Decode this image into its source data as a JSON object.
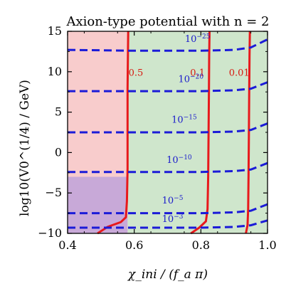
{
  "chart_data": {
    "type": "contour",
    "title": "Axion-type potential with n = 2",
    "xlabel": "χ_ini / (f_a π)",
    "ylabel": "log10(V0^(1/4) / GeV)",
    "xlim": [
      0.4,
      1.0
    ],
    "ylim": [
      -10,
      15
    ],
    "x_ticks": [
      "0.4",
      "0.6",
      "0.8",
      "1.0"
    ],
    "y_ticks": [
      "−10",
      "−5",
      "0",
      "5",
      "10",
      "15"
    ],
    "x_tick_values": [
      0.4,
      0.6,
      0.8,
      1.0
    ],
    "y_tick_values": [
      -10,
      -5,
      0,
      5,
      10,
      15
    ],
    "regions": [
      {
        "name": "red-region",
        "color": "#f8cccc",
        "x_range": [
          0.4,
          0.58
        ],
        "y_range": [
          -10,
          15
        ]
      },
      {
        "name": "green-region",
        "color": "#cfe6cc",
        "x_range": [
          0.58,
          1.0
        ],
        "y_range": [
          -10,
          15
        ]
      },
      {
        "name": "purple-region",
        "color": "#c8a9d8",
        "x_range": [
          0.4,
          0.58
        ],
        "y_range": [
          -10,
          -3
        ]
      }
    ],
    "red_contours": [
      {
        "label": "0.5",
        "label_x": 0.605,
        "label_y": 9.5,
        "points": [
          [
            0.49,
            -10
          ],
          [
            0.52,
            -9.2
          ],
          [
            0.56,
            -8.6
          ],
          [
            0.575,
            -8
          ],
          [
            0.578,
            -6
          ],
          [
            0.58,
            -2
          ],
          [
            0.58,
            3
          ],
          [
            0.58,
            8
          ],
          [
            0.581,
            12
          ],
          [
            0.582,
            15
          ]
        ]
      },
      {
        "label": "0.1",
        "label_x": 0.79,
        "label_y": 9.5,
        "points": [
          [
            0.77,
            -10
          ],
          [
            0.795,
            -9.3
          ],
          [
            0.815,
            -8.5
          ],
          [
            0.82,
            -7
          ],
          [
            0.822,
            -3
          ],
          [
            0.823,
            2
          ],
          [
            0.824,
            7
          ],
          [
            0.825,
            12
          ],
          [
            0.826,
            15
          ]
        ]
      },
      {
        "label": "0.01",
        "label_x": 0.915,
        "label_y": 9.5,
        "points": [
          [
            0.935,
            -10
          ],
          [
            0.94,
            -9
          ],
          [
            0.942,
            -7
          ],
          [
            0.943,
            -3
          ],
          [
            0.944,
            2
          ],
          [
            0.945,
            7
          ],
          [
            0.946,
            12
          ],
          [
            0.947,
            15
          ]
        ]
      }
    ],
    "blue_contours": [
      {
        "label": "10",
        "exponent": "−25",
        "label_x": 0.79,
        "label_y": 13.7,
        "points": [
          [
            0.4,
            12.7
          ],
          [
            0.6,
            12.6
          ],
          [
            0.8,
            12.6
          ],
          [
            0.9,
            12.7
          ],
          [
            0.95,
            13.0
          ],
          [
            1.0,
            14.0
          ]
        ]
      },
      {
        "label": "10",
        "exponent": "−20",
        "label_x": 0.77,
        "label_y": 8.7,
        "points": [
          [
            0.4,
            7.6
          ],
          [
            0.6,
            7.6
          ],
          [
            0.8,
            7.6
          ],
          [
            0.9,
            7.7
          ],
          [
            0.95,
            7.9
          ],
          [
            1.0,
            8.7
          ]
        ]
      },
      {
        "label": "10",
        "exponent": "−15",
        "label_x": 0.75,
        "label_y": 3.7,
        "points": [
          [
            0.4,
            2.5
          ],
          [
            0.6,
            2.5
          ],
          [
            0.8,
            2.5
          ],
          [
            0.9,
            2.6
          ],
          [
            0.95,
            2.8
          ],
          [
            1.0,
            3.6
          ]
        ]
      },
      {
        "label": "10",
        "exponent": "−10",
        "label_x": 0.735,
        "label_y": -1.3,
        "points": [
          [
            0.4,
            -2.4
          ],
          [
            0.6,
            -2.4
          ],
          [
            0.8,
            -2.4
          ],
          [
            0.9,
            -2.3
          ],
          [
            0.95,
            -2.1
          ],
          [
            1.0,
            -1.3
          ]
        ]
      },
      {
        "label": "10",
        "exponent": "−5",
        "label_x": 0.715,
        "label_y": -6.3,
        "points": [
          [
            0.4,
            -7.5
          ],
          [
            0.6,
            -7.5
          ],
          [
            0.8,
            -7.5
          ],
          [
            0.9,
            -7.4
          ],
          [
            0.95,
            -7.2
          ],
          [
            1.0,
            -6.4
          ]
        ]
      },
      {
        "label": "10",
        "exponent": "−3",
        "label_x": 0.715,
        "label_y": -8.6,
        "points": [
          [
            0.4,
            -9.3
          ],
          [
            0.6,
            -9.3
          ],
          [
            0.8,
            -9.3
          ],
          [
            0.9,
            -9.2
          ],
          [
            0.95,
            -9.0
          ],
          [
            1.0,
            -8.4
          ]
        ]
      }
    ],
    "colors": {
      "red_line": "#e8191c",
      "red_label": "#d8180f",
      "blue_line": "#1b1bd8",
      "blue_label": "#1b1bcc",
      "axis": "#000000"
    }
  }
}
